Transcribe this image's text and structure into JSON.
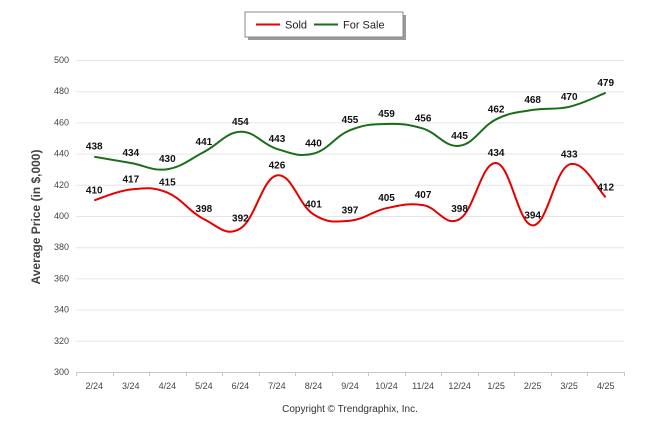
{
  "chart_data": {
    "type": "line",
    "title": "",
    "ylabel": "Average Price (in $,000)",
    "xlabel": "",
    "ylim": [
      300,
      500
    ],
    "yticks": [
      300,
      320,
      340,
      360,
      380,
      400,
      420,
      440,
      460,
      480,
      500
    ],
    "categories": [
      "2/24",
      "3/24",
      "4/24",
      "5/24",
      "6/24",
      "7/24",
      "8/24",
      "9/24",
      "10/24",
      "11/24",
      "12/24",
      "1/25",
      "2/25",
      "3/25",
      "4/25"
    ],
    "series": [
      {
        "name": "Sold",
        "color": "#e60000",
        "values": [
          410,
          417,
          415,
          398,
          392,
          426,
          401,
          397,
          405,
          407,
          398,
          434,
          394,
          433,
          412
        ]
      },
      {
        "name": "For Sale",
        "color": "#1a6e1a",
        "values": [
          438,
          434,
          430,
          441,
          454,
          443,
          440,
          455,
          459,
          456,
          445,
          462,
          468,
          470,
          479
        ]
      }
    ],
    "legend_position": "top-center",
    "grid": true
  },
  "footer": "Copyright © Trendgraphix, Inc."
}
